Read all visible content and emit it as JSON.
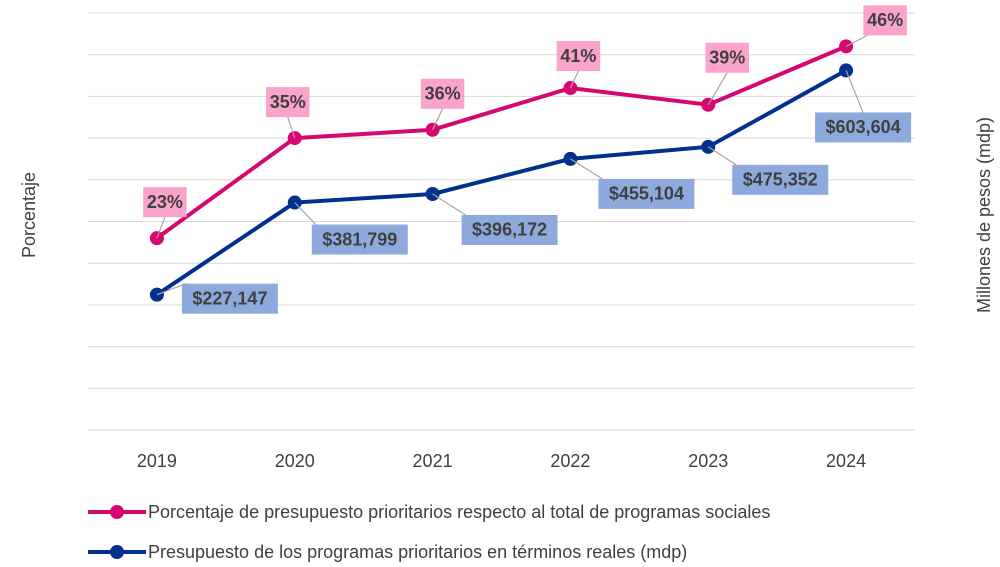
{
  "chart_data": {
    "type": "line",
    "categories": [
      "2019",
      "2020",
      "2021",
      "2022",
      "2023",
      "2024"
    ],
    "ylabel": "Porcentaje",
    "y2label": "Millones de pesos (mdp)",
    "ylim": [
      0,
      50
    ],
    "yticks": [
      0,
      5,
      10,
      15,
      20,
      25,
      30,
      35,
      40,
      45,
      50
    ],
    "y2lim": [
      0,
      700000
    ],
    "grid": true,
    "legend": "bottom",
    "series": [
      {
        "name": "Porcentaje de presupuesto prioritarios respecto al total de programas sociales",
        "color": "#d6076f",
        "label_color": "#f9a3cd",
        "values": [
          23,
          35,
          36,
          41,
          39,
          46
        ],
        "value_labels": [
          "23%",
          "35%",
          "36%",
          "41%",
          "39%",
          "46%"
        ]
      },
      {
        "name": "Presupuesto de los programas prioritarios en términos reales (mdp)",
        "color": "#00318f",
        "label_color": "#8eaadc",
        "axis": "y2",
        "values": [
          227147,
          381799,
          396172,
          455104,
          475352,
          603604
        ],
        "value_labels": [
          "$227,147",
          "$381,799",
          "$396,172",
          "$455,104",
          "$475,352",
          "$603,604"
        ]
      }
    ]
  }
}
